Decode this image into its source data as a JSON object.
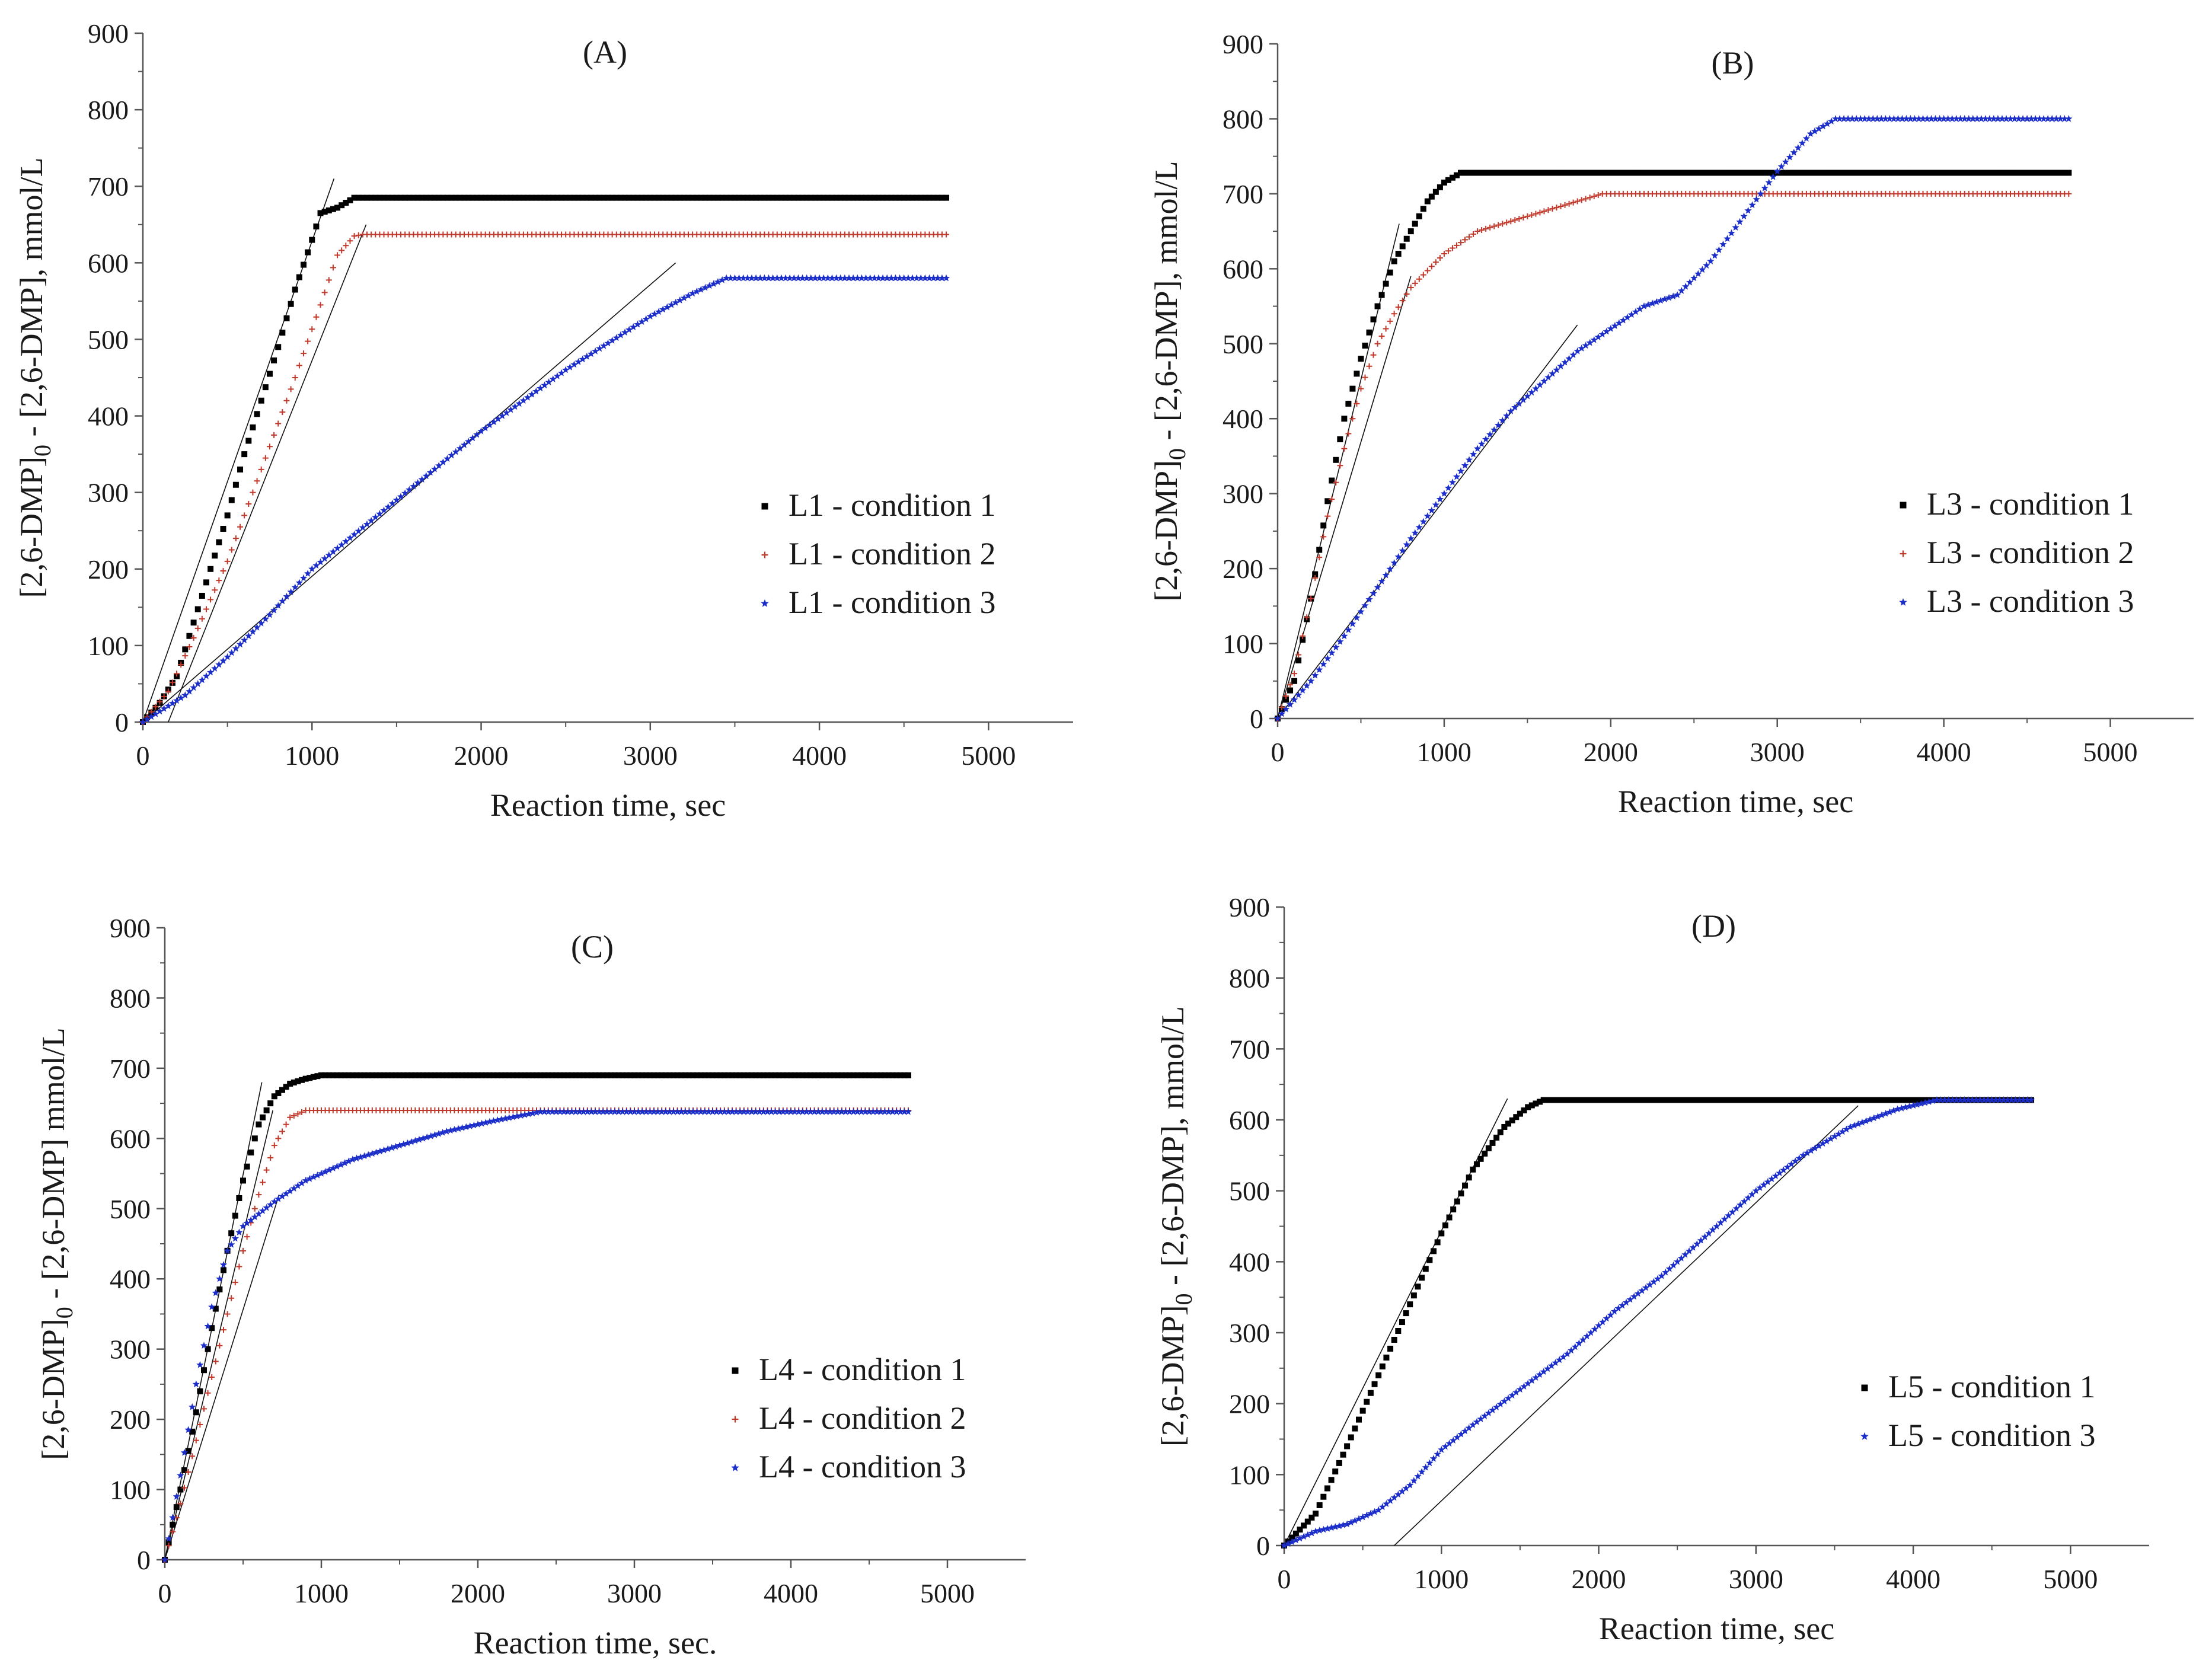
{
  "figure": {
    "chart_data": [
      {
        "type": "scatter",
        "panel": "(A)",
        "title": "(A)",
        "xlabel": "Reaction time, sec",
        "ylabel": "[2,6-DMP]0 - [2,6-DMP], mmol/L",
        "ylabel_parts": [
          "[2,6-DMP]",
          "0",
          " - [2,6-DMP], mmol/L"
        ],
        "xlim": [
          0,
          5500
        ],
        "ylim": [
          0,
          900
        ],
        "xticks": [
          0,
          1000,
          2000,
          3000,
          4000,
          5000
        ],
        "yticks": [
          0,
          100,
          200,
          300,
          400,
          500,
          600,
          700,
          800,
          900
        ],
        "legend_position": "center-right",
        "series": [
          {
            "name": "L1 - condition 1",
            "color": "#000000",
            "marker": "square",
            "curve": [
              [
                0,
                0
              ],
              [
                100,
                25
              ],
              [
                200,
                60
              ],
              [
                300,
                130
              ],
              [
                400,
                200
              ],
              [
                500,
                270
              ],
              [
                600,
                350
              ],
              [
                700,
                420
              ],
              [
                800,
                490
              ],
              [
                900,
                565
              ],
              [
                1000,
                630
              ],
              [
                1050,
                665
              ],
              [
                1150,
                672
              ],
              [
                1250,
                685
              ],
              [
                4750,
                685
              ]
            ]
          },
          {
            "name": "L1 - condition 2",
            "color": "#c0392b",
            "marker": "plus",
            "curve": [
              [
                0,
                0
              ],
              [
                150,
                40
              ],
              [
                300,
                110
              ],
              [
                500,
                210
              ],
              [
                700,
                330
              ],
              [
                900,
                450
              ],
              [
                1050,
                545
              ],
              [
                1150,
                610
              ],
              [
                1250,
                635
              ],
              [
                1300,
                637
              ],
              [
                4750,
                637
              ]
            ]
          },
          {
            "name": "L1 - condition 3",
            "color": "#1c2ec9",
            "marker": "star",
            "curve": [
              [
                0,
                0
              ],
              [
                250,
                35
              ],
              [
                500,
                85
              ],
              [
                750,
                140
              ],
              [
                1000,
                200
              ],
              [
                1250,
                245
              ],
              [
                1500,
                290
              ],
              [
                1750,
                335
              ],
              [
                2000,
                380
              ],
              [
                2250,
                420
              ],
              [
                2500,
                460
              ],
              [
                2750,
                495
              ],
              [
                3000,
                530
              ],
              [
                3250,
                560
              ],
              [
                3450,
                580
              ],
              [
                4750,
                580
              ]
            ]
          }
        ],
        "fit_lines": [
          {
            "x": [
              0,
              1130
            ],
            "y": [
              0,
              710
            ]
          },
          {
            "x": [
              150,
              1320
            ],
            "y": [
              0,
              650
            ]
          },
          {
            "x": [
              0,
              3150
            ],
            "y": [
              0,
              600
            ]
          }
        ]
      },
      {
        "type": "scatter",
        "panel": "(B)",
        "title": "(B)",
        "xlabel": "Reaction time, sec",
        "ylabel": "[2,6-DMP]0 - [2,6-DMP], mmol/L",
        "ylabel_parts": [
          "[2,6-DMP]",
          "0",
          " - [2,6-DMP], mmol/L"
        ],
        "xlim": [
          0,
          5500
        ],
        "ylim": [
          0,
          900
        ],
        "xticks": [
          0,
          1000,
          2000,
          3000,
          4000,
          5000
        ],
        "yticks": [
          0,
          100,
          200,
          300,
          400,
          500,
          600,
          700,
          800,
          900
        ],
        "legend_position": "center-right",
        "series": [
          {
            "name": "L3 - condition 1",
            "color": "#000000",
            "marker": "square",
            "curve": [
              [
                0,
                0
              ],
              [
                100,
                50
              ],
              [
                200,
                160
              ],
              [
                300,
                290
              ],
              [
                400,
                400
              ],
              [
                500,
                480
              ],
              [
                600,
                550
              ],
              [
                700,
                610
              ],
              [
                800,
                650
              ],
              [
                900,
                690
              ],
              [
                1000,
                715
              ],
              [
                1100,
                728
              ],
              [
                4750,
                728
              ]
            ]
          },
          {
            "name": "L3 - condition 2",
            "color": "#c0392b",
            "marker": "plus",
            "curve": [
              [
                0,
                0
              ],
              [
                100,
                60
              ],
              [
                200,
                160
              ],
              [
                300,
                270
              ],
              [
                400,
                360
              ],
              [
                500,
                440
              ],
              [
                600,
                500
              ],
              [
                700,
                540
              ],
              [
                800,
                575
              ],
              [
                1000,
                620
              ],
              [
                1200,
                650
              ],
              [
                1500,
                670
              ],
              [
                1800,
                690
              ],
              [
                1950,
                700
              ],
              [
                4750,
                700
              ]
            ]
          },
          {
            "name": "L3 - condition 3",
            "color": "#1c2ec9",
            "marker": "star",
            "curve": [
              [
                0,
                0
              ],
              [
                200,
                50
              ],
              [
                400,
                110
              ],
              [
                600,
                175
              ],
              [
                800,
                240
              ],
              [
                1000,
                300
              ],
              [
                1200,
                360
              ],
              [
                1400,
                410
              ],
              [
                1600,
                450
              ],
              [
                1800,
                490
              ],
              [
                2000,
                520
              ],
              [
                2200,
                550
              ],
              [
                2400,
                565
              ],
              [
                2600,
                610
              ],
              [
                2800,
                670
              ],
              [
                3000,
                730
              ],
              [
                3200,
                780
              ],
              [
                3350,
                800
              ],
              [
                4750,
                800
              ]
            ]
          }
        ],
        "fit_lines": [
          {
            "x": [
              0,
              730
            ],
            "y": [
              0,
              660
            ]
          },
          {
            "x": [
              0,
              800
            ],
            "y": [
              0,
              590
            ]
          },
          {
            "x": [
              0,
              1800
            ],
            "y": [
              0,
              525
            ]
          }
        ]
      },
      {
        "type": "scatter",
        "panel": "(C)",
        "title": "(C)",
        "xlabel": "Reaction time, sec.",
        "ylabel": "[2,6-DMP]0 - [2,6-DMP] mmol/L",
        "ylabel_parts": [
          "[2,6-DMP]",
          "0",
          " - [2,6-DMP] mmol/L"
        ],
        "xlim": [
          0,
          5500
        ],
        "ylim": [
          0,
          900
        ],
        "xticks": [
          0,
          1000,
          2000,
          3000,
          4000,
          5000
        ],
        "yticks": [
          0,
          100,
          200,
          300,
          400,
          500,
          600,
          700,
          800,
          900
        ],
        "legend_position": "bottom-right",
        "series": [
          {
            "name": "L4 - condition 1",
            "color": "#000000",
            "marker": "square",
            "curve": [
              [
                0,
                0
              ],
              [
                100,
                100
              ],
              [
                200,
                210
              ],
              [
                300,
                330
              ],
              [
                400,
                440
              ],
              [
                500,
                540
              ],
              [
                600,
                620
              ],
              [
                700,
                660
              ],
              [
                800,
                678
              ],
              [
                900,
                685
              ],
              [
                1000,
                690
              ],
              [
                4750,
                690
              ]
            ]
          },
          {
            "name": "L4 - condition 2",
            "color": "#c0392b",
            "marker": "plus",
            "curve": [
              [
                0,
                0
              ],
              [
                100,
                80
              ],
              [
                200,
                170
              ],
              [
                300,
                260
              ],
              [
                400,
                350
              ],
              [
                500,
                440
              ],
              [
                600,
                520
              ],
              [
                700,
                590
              ],
              [
                800,
                630
              ],
              [
                900,
                640
              ],
              [
                4750,
                640
              ]
            ]
          },
          {
            "name": "L4 - condition 3",
            "color": "#1c2ec9",
            "marker": "star",
            "curve": [
              [
                0,
                0
              ],
              [
                100,
                120
              ],
              [
                200,
                250
              ],
              [
                300,
                360
              ],
              [
                400,
                440
              ],
              [
                500,
                475
              ],
              [
                700,
                510
              ],
              [
                900,
                540
              ],
              [
                1200,
                570
              ],
              [
                1500,
                590
              ],
              [
                1800,
                610
              ],
              [
                2100,
                625
              ],
              [
                2400,
                638
              ],
              [
                4750,
                638
              ]
            ]
          }
        ],
        "fit_lines": [
          {
            "x": [
              0,
              620
            ],
            "y": [
              0,
              680
            ]
          },
          {
            "x": [
              0,
              690
            ],
            "y": [
              0,
              640
            ]
          },
          {
            "x": [
              0,
              730
            ],
            "y": [
              0,
              520
            ]
          }
        ]
      },
      {
        "type": "scatter",
        "panel": "(D)",
        "title": "(D)",
        "xlabel": "Reaction time, sec",
        "ylabel": "[2,6-DMP]0 - [2,6-DMP], mmol/L",
        "ylabel_parts": [
          "[2,6-DMP]",
          "0",
          " - [2,6-DMP], mmol/L"
        ],
        "xlim": [
          0,
          5500
        ],
        "ylim": [
          0,
          900
        ],
        "xticks": [
          0,
          1000,
          2000,
          3000,
          4000,
          5000
        ],
        "yticks": [
          0,
          100,
          200,
          300,
          400,
          500,
          600,
          700,
          800,
          900
        ],
        "legend_position": "bottom-right",
        "series": [
          {
            "name": "L5 - condition 1",
            "color": "#000000",
            "marker": "square",
            "curve": [
              [
                0,
                0
              ],
              [
                200,
                45
              ],
              [
                400,
                140
              ],
              [
                600,
                240
              ],
              [
                800,
                340
              ],
              [
                1000,
                440
              ],
              [
                1200,
                530
              ],
              [
                1400,
                590
              ],
              [
                1550,
                618
              ],
              [
                1650,
                628
              ],
              [
                4750,
                628
              ]
            ]
          },
          {
            "name": "L5 - condition 3",
            "color": "#1c2ec9",
            "marker": "star",
            "curve": [
              [
                0,
                0
              ],
              [
                200,
                20
              ],
              [
                400,
                30
              ],
              [
                600,
                50
              ],
              [
                800,
                85
              ],
              [
                1000,
                135
              ],
              [
                1200,
                170
              ],
              [
                1500,
                220
              ],
              [
                1800,
                270
              ],
              [
                2100,
                330
              ],
              [
                2400,
                380
              ],
              [
                2700,
                440
              ],
              [
                3000,
                500
              ],
              [
                3300,
                550
              ],
              [
                3600,
                590
              ],
              [
                3900,
                615
              ],
              [
                4150,
                628
              ],
              [
                4750,
                628
              ]
            ]
          }
        ],
        "fit_lines": [
          {
            "x": [
              0,
              1420
            ],
            "y": [
              0,
              630
            ]
          },
          {
            "x": [
              700,
              3650
            ],
            "y": [
              0,
              620
            ]
          }
        ]
      }
    ]
  }
}
